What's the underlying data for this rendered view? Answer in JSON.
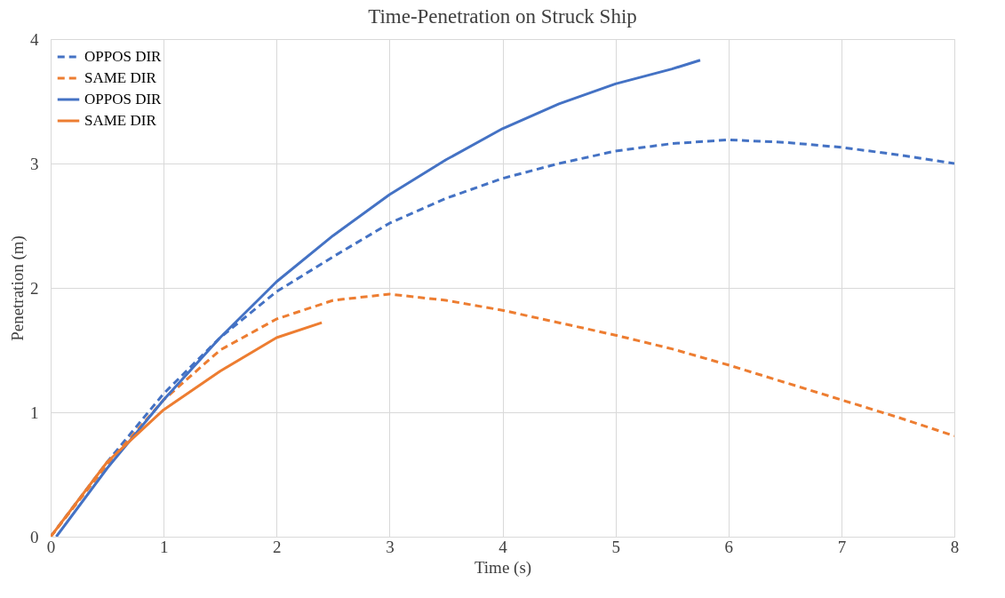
{
  "chart_data": {
    "type": "line",
    "title": "Time-Penetration on Struck Ship",
    "xlabel": "Time (s)",
    "ylabel": "Penetration (m)",
    "xlim": [
      0,
      8
    ],
    "xticks": [
      0,
      1,
      2,
      3,
      4,
      5,
      6,
      7,
      8
    ],
    "ylim": [
      0,
      4
    ],
    "yticks": [
      0,
      1,
      2,
      3,
      4
    ],
    "grid": true,
    "legend": "top left",
    "marker": "none",
    "series": [
      {
        "name": "OPPOS DIR",
        "color": "#4472c4",
        "line_style": "dashed",
        "x": [
          0,
          0.5,
          1,
          1.5,
          2,
          2.5,
          3,
          3.5,
          4,
          4.5,
          5,
          5.5,
          6,
          6.5,
          7,
          7.5,
          8
        ],
        "values": [
          0,
          0.6,
          1.15,
          1.6,
          1.97,
          2.25,
          2.52,
          2.72,
          2.88,
          3.0,
          3.1,
          3.16,
          3.19,
          3.17,
          3.13,
          3.07,
          3.0
        ]
      },
      {
        "name": "SAME DIR",
        "color": "#ed7d31",
        "line_style": "dashed",
        "x": [
          0,
          0.5,
          1,
          1.5,
          2,
          2.5,
          3,
          3.5,
          4,
          4.5,
          5,
          5.5,
          6,
          6.5,
          7,
          7.5,
          8
        ],
        "values": [
          0,
          0.58,
          1.1,
          1.5,
          1.75,
          1.9,
          1.95,
          1.9,
          1.82,
          1.72,
          1.62,
          1.51,
          1.38,
          1.24,
          1.1,
          0.96,
          0.81
        ]
      },
      {
        "name": "OPPOS DIR",
        "color": "#4472c4",
        "line_style": "solid",
        "x": [
          0.05,
          0.5,
          1,
          1.5,
          2,
          2.5,
          3,
          3.5,
          4,
          4.5,
          5,
          5.5,
          5.75
        ],
        "values": [
          0,
          0.55,
          1.1,
          1.6,
          2.05,
          2.42,
          2.75,
          3.03,
          3.28,
          3.48,
          3.64,
          3.76,
          3.83
        ]
      },
      {
        "name": "SAME DIR",
        "color": "#ed7d31",
        "line_style": "solid",
        "x": [
          0,
          0.5,
          1,
          1.5,
          2,
          2.4
        ],
        "values": [
          0,
          0.6,
          1.02,
          1.33,
          1.6,
          1.72
        ]
      }
    ]
  }
}
